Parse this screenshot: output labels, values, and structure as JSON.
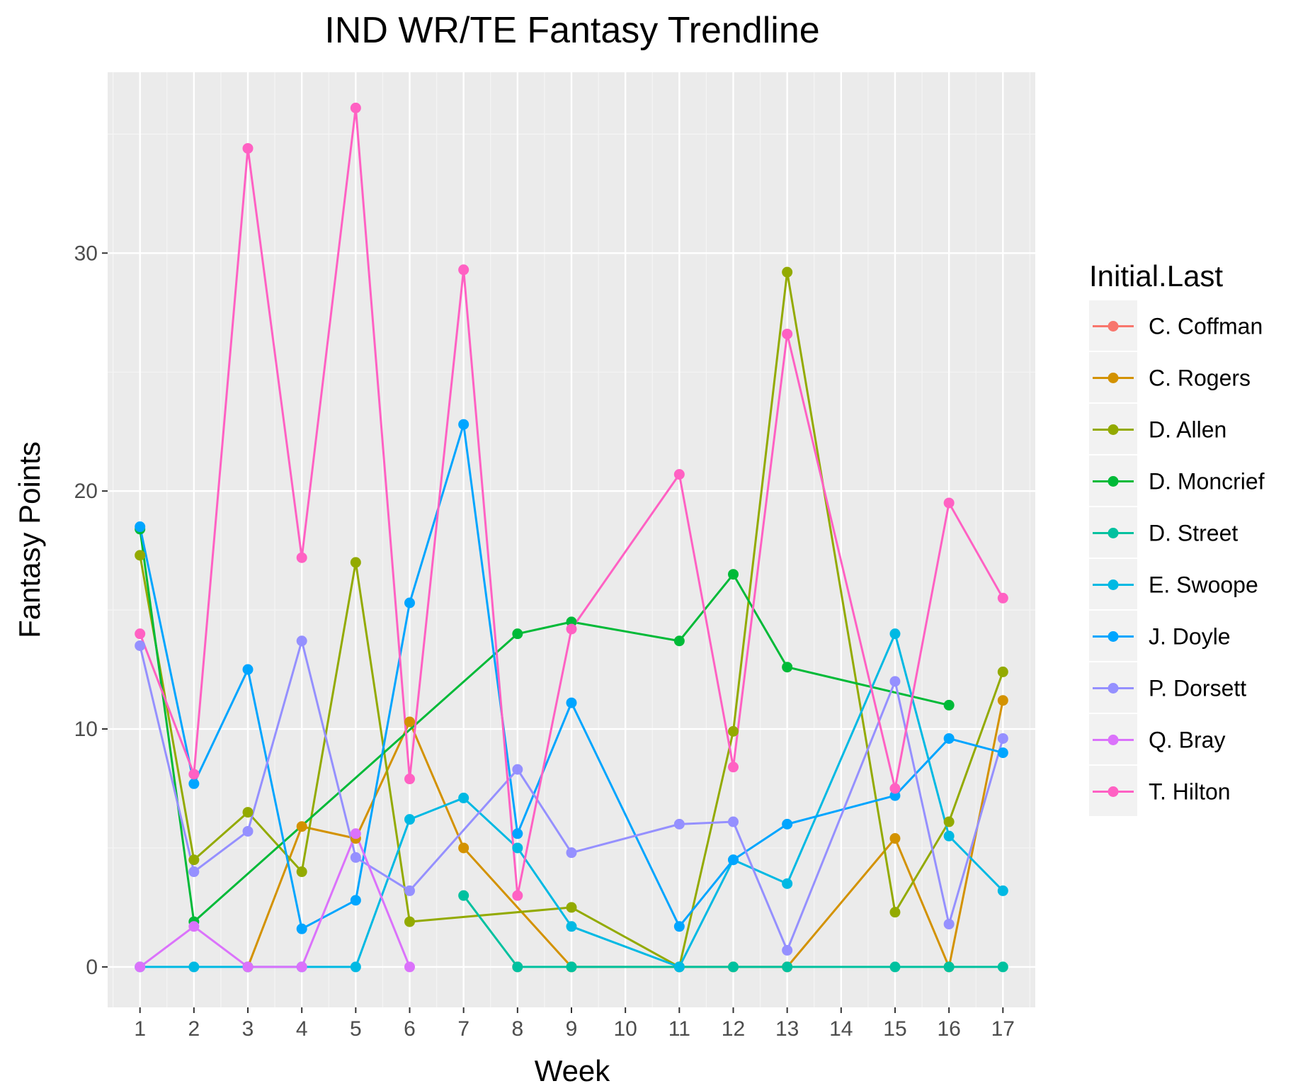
{
  "chart_data": {
    "type": "line",
    "title": "IND WR/TE Fantasy Trendline",
    "xlabel": "Week",
    "ylabel": "Fantasy Points",
    "x_categories": [
      "1",
      "2",
      "3",
      "4",
      "5",
      "6",
      "7",
      "8",
      "9",
      "10",
      "11",
      "12",
      "13",
      "14",
      "15",
      "16",
      "17"
    ],
    "y_ticks": [
      0,
      10,
      20,
      30
    ],
    "ylim": [
      -1.7,
      37.6
    ],
    "grid": true,
    "legend": {
      "title": "Initial.Last",
      "position": "right"
    },
    "series": [
      {
        "name": "C. Coffman",
        "color": "#F8766D",
        "points": [
          [
            8,
            0
          ]
        ]
      },
      {
        "name": "C. Rogers",
        "color": "#D39200",
        "points": [
          [
            3,
            0
          ],
          [
            4,
            5.9
          ],
          [
            5,
            5.4
          ],
          [
            6,
            10.3
          ],
          [
            7,
            5.0
          ],
          [
            9,
            0
          ],
          [
            12,
            0
          ],
          [
            13,
            0
          ],
          [
            15,
            5.4
          ],
          [
            16,
            0
          ],
          [
            17,
            11.2
          ]
        ]
      },
      {
        "name": "D. Allen",
        "color": "#93AA00",
        "points": [
          [
            1,
            17.3
          ],
          [
            2,
            4.5
          ],
          [
            3,
            6.5
          ],
          [
            4,
            4.0
          ],
          [
            5,
            17.0
          ],
          [
            6,
            1.9
          ],
          [
            9,
            2.5
          ],
          [
            11,
            0
          ],
          [
            12,
            9.9
          ],
          [
            13,
            29.2
          ],
          [
            15,
            2.3
          ],
          [
            16,
            6.1
          ],
          [
            17,
            12.4
          ]
        ]
      },
      {
        "name": "D. Moncrief",
        "color": "#00BA38",
        "points": [
          [
            1,
            18.4
          ],
          [
            2,
            1.9
          ],
          [
            8,
            14.0
          ],
          [
            9,
            14.5
          ],
          [
            11,
            13.7
          ],
          [
            12,
            16.5
          ],
          [
            13,
            12.6
          ],
          [
            16,
            11.0
          ]
        ]
      },
      {
        "name": "D. Street",
        "color": "#00C19F",
        "points": [
          [
            7,
            3.0
          ],
          [
            8,
            0
          ],
          [
            9,
            0
          ],
          [
            11,
            0
          ],
          [
            12,
            0
          ],
          [
            13,
            0
          ],
          [
            15,
            0
          ],
          [
            16,
            0
          ],
          [
            17,
            0
          ]
        ]
      },
      {
        "name": "E. Swoope",
        "color": "#00B9E3",
        "points": [
          [
            1,
            0
          ],
          [
            2,
            0
          ],
          [
            3,
            0
          ],
          [
            4,
            0
          ],
          [
            5,
            0
          ],
          [
            6,
            6.2
          ],
          [
            7,
            7.1
          ],
          [
            8,
            5.0
          ],
          [
            9,
            1.7
          ],
          [
            11,
            0
          ],
          [
            12,
            4.5
          ],
          [
            13,
            3.5
          ],
          [
            15,
            14.0
          ],
          [
            16,
            5.5
          ],
          [
            17,
            3.2
          ]
        ]
      },
      {
        "name": "J. Doyle",
        "color": "#00A5FF",
        "points": [
          [
            1,
            18.5
          ],
          [
            2,
            7.7
          ],
          [
            3,
            12.5
          ],
          [
            4,
            1.6
          ],
          [
            5,
            2.8
          ],
          [
            6,
            15.3
          ],
          [
            7,
            22.8
          ],
          [
            8,
            5.6
          ],
          [
            9,
            11.1
          ],
          [
            11,
            1.7
          ],
          [
            12,
            4.5
          ],
          [
            13,
            6.0
          ],
          [
            15,
            7.2
          ],
          [
            16,
            9.6
          ],
          [
            17,
            9.0
          ]
        ]
      },
      {
        "name": "P. Dorsett",
        "color": "#9590FF",
        "points": [
          [
            1,
            13.5
          ],
          [
            2,
            4.0
          ],
          [
            3,
            5.7
          ],
          [
            4,
            13.7
          ],
          [
            5,
            4.6
          ],
          [
            6,
            3.2
          ],
          [
            8,
            8.3
          ],
          [
            9,
            4.8
          ],
          [
            11,
            6.0
          ],
          [
            12,
            6.1
          ],
          [
            13,
            0.7
          ],
          [
            15,
            12.0
          ],
          [
            16,
            1.8
          ],
          [
            17,
            9.6
          ]
        ]
      },
      {
        "name": "Q. Bray",
        "color": "#DB72FB",
        "points": [
          [
            1,
            0
          ],
          [
            2,
            1.7
          ],
          [
            3,
            0
          ],
          [
            4,
            0
          ],
          [
            5,
            5.6
          ],
          [
            6,
            0
          ]
        ]
      },
      {
        "name": "T. Hilton",
        "color": "#FF61C3",
        "points": [
          [
            1,
            14.0
          ],
          [
            2,
            8.1
          ],
          [
            3,
            34.4
          ],
          [
            4,
            17.2
          ],
          [
            5,
            36.1
          ],
          [
            6,
            7.9
          ],
          [
            7,
            29.3
          ],
          [
            8,
            3.0
          ],
          [
            9,
            14.2
          ],
          [
            11,
            20.7
          ],
          [
            12,
            8.4
          ],
          [
            13,
            26.6
          ],
          [
            15,
            7.5
          ],
          [
            16,
            19.5
          ],
          [
            17,
            15.5
          ]
        ]
      }
    ]
  }
}
